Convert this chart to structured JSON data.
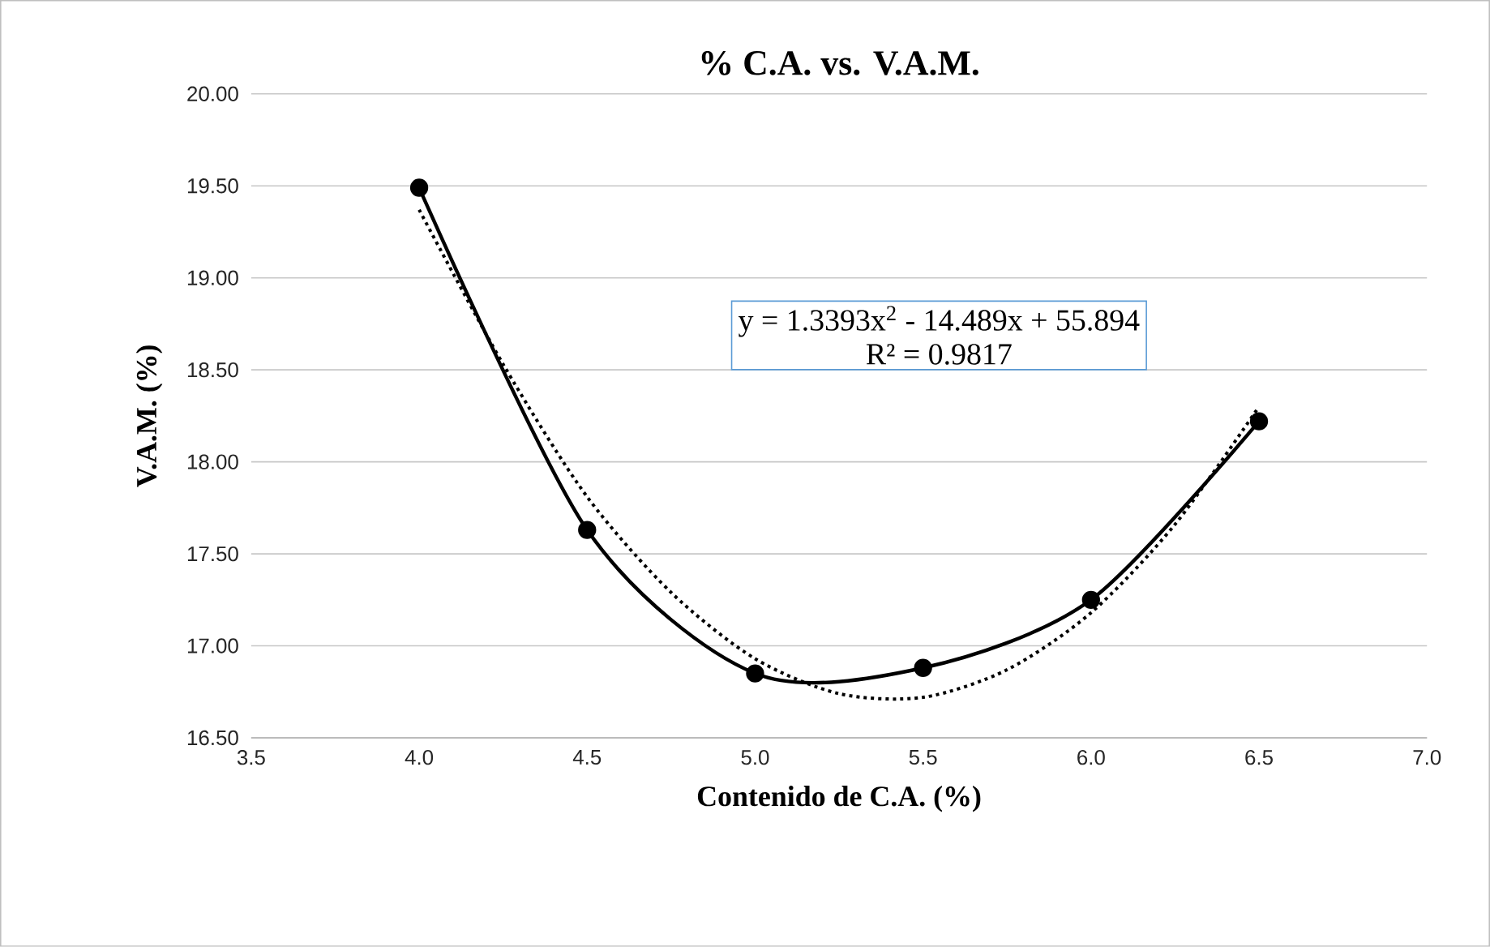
{
  "chart_data": {
    "type": "line",
    "title": "% C.A. vs. V.A.M.",
    "xlabel": "Contenido de C.A. (%)",
    "ylabel": "V.A.M. (%)",
    "xlim": [
      3.5,
      7.0
    ],
    "ylim": [
      16.5,
      20.0
    ],
    "xticks": [
      3.5,
      {
        "value": 4,
        "label": "4.0"
      },
      4.5,
      {
        "value": 5,
        "label": "5.0"
      },
      5.5,
      {
        "value": 6,
        "label": "6.0"
      },
      6.5,
      {
        "value": 7,
        "label": "7.0"
      }
    ],
    "yticks": [
      {
        "value": 16.5,
        "label": "16.50"
      },
      {
        "value": 17,
        "label": "17.00"
      },
      {
        "value": 17.5,
        "label": "17.50"
      },
      {
        "value": 18,
        "label": "18.00"
      },
      {
        "value": 18.5,
        "label": "18.50"
      },
      {
        "value": 19,
        "label": "19.00"
      },
      {
        "value": 19.5,
        "label": "19.50"
      },
      {
        "value": 20,
        "label": "20.00"
      }
    ],
    "grid": "y",
    "series": [
      {
        "color": "#000000",
        "x": [
          4.0,
          4.5,
          5.0,
          5.5,
          6.0,
          6.5
        ],
        "values": [
          19.49,
          17.63,
          16.85,
          16.88,
          17.25,
          18.22
        ],
        "marker": "circle",
        "line_style": "solid"
      },
      {
        "type": "line",
        "color": "#000000",
        "x": [
          4.0,
          4.25,
          4.5,
          4.75,
          5.0,
          5.25,
          5.5,
          5.75,
          6.0,
          6.25,
          6.5
        ],
        "values": [
          19.37,
          18.53,
          17.81,
          17.29,
          16.93,
          16.74,
          16.72,
          16.87,
          17.18,
          17.66,
          18.3
        ],
        "marker": "none",
        "line_style": "dotted"
      }
    ],
    "annotations": [
      "y = 1.3393x$^{2}$ - 14.489x + 55.894",
      "R² = 0.9817"
    ]
  }
}
